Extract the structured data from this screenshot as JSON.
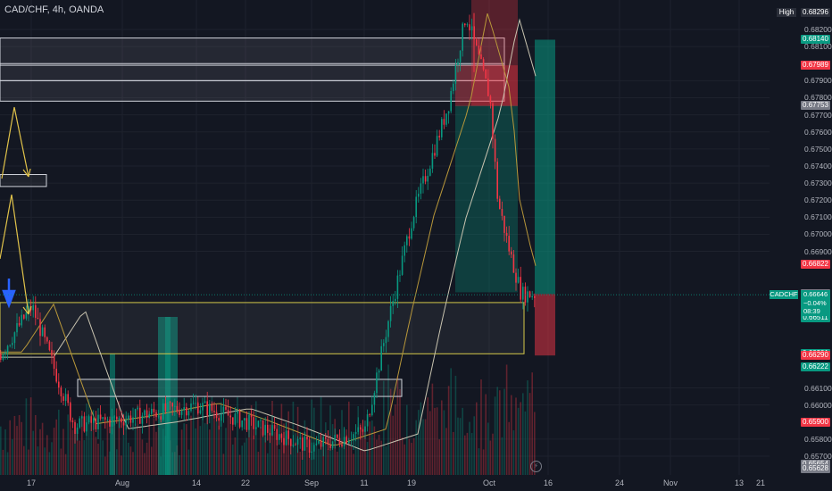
{
  "header": {
    "symbol_title": "CAD/CHF, 4h, OANDA"
  },
  "price_axis": {
    "ticks": [
      {
        "label": "0.68200",
        "value": 0.682
      },
      {
        "label": "0.68100",
        "value": 0.681
      },
      {
        "label": "0.67900",
        "value": 0.679
      },
      {
        "label": "0.67800",
        "value": 0.678
      },
      {
        "label": "0.67700",
        "value": 0.677
      },
      {
        "label": "0.67600",
        "value": 0.676
      },
      {
        "label": "0.67500",
        "value": 0.675
      },
      {
        "label": "0.67400",
        "value": 0.674
      },
      {
        "label": "0.67300",
        "value": 0.673
      },
      {
        "label": "0.67200",
        "value": 0.672
      },
      {
        "label": "0.67100",
        "value": 0.671
      },
      {
        "label": "0.67000",
        "value": 0.67
      },
      {
        "label": "0.66900",
        "value": 0.669
      },
      {
        "label": "0.66100",
        "value": 0.661
      },
      {
        "label": "0.66000",
        "value": 0.66
      },
      {
        "label": "0.65800",
        "value": 0.658
      },
      {
        "label": "0.65700",
        "value": 0.657
      }
    ],
    "high": {
      "label": "High",
      "value": "0.68296"
    },
    "badges": [
      {
        "value": "0.68140",
        "color": "#089981"
      },
      {
        "value": "0.67991",
        "color": "#787b86"
      },
      {
        "value": "0.67989",
        "color": "#f23645"
      },
      {
        "value": "0.67753",
        "color": "#787b86"
      },
      {
        "value": "0.66822",
        "color": "#f23645"
      },
      {
        "value": "0.66650",
        "color": "#787b86"
      },
      {
        "value": "0.66575",
        "color": "#089981"
      },
      {
        "value": "0.66574",
        "color": "#089981"
      },
      {
        "value": "0.66572",
        "color": "#787b86"
      },
      {
        "value": "0.66511",
        "color": "#089981"
      },
      {
        "value": "0.66301",
        "color": "#089981"
      },
      {
        "value": "0.66290",
        "color": "#f23645"
      },
      {
        "value": "0.66222",
        "color": "#089981"
      },
      {
        "value": "0.65900",
        "color": "#f23645"
      },
      {
        "value": "0.65654",
        "color": "#787b86"
      },
      {
        "value": "0.65628",
        "color": "#787b86"
      }
    ],
    "current": {
      "symbol": "CADCHF",
      "price": "0.66646",
      "change": "−0.04%",
      "countdown": "08:39"
    }
  },
  "time_axis": [
    "17",
    "Aug",
    "14",
    "22",
    "Sep",
    "11",
    "19",
    "Oct",
    "16",
    "24",
    "Nov",
    "13",
    "21"
  ],
  "colors": {
    "background": "#131722",
    "up": "#089981",
    "down": "#f23645",
    "zone_yellow": "#d4c84a",
    "zone_white": "#d1d4dc",
    "arrow_yellow": "#e0c24a",
    "arrow_blue": "#2962ff",
    "ma_light": "#c9c4b0",
    "ma_gold": "#b8973a"
  },
  "chart_data": {
    "type": "candlestick",
    "title": "CAD/CHF, 4h, OANDA",
    "ylim": [
      0.6555,
      0.6835
    ],
    "x_labels": [
      "17",
      "Aug",
      "14",
      "22",
      "Sep",
      "11",
      "19",
      "Oct",
      "16",
      "24",
      "Nov",
      "13",
      "21"
    ],
    "series": [
      {
        "name": "CAD/CHF",
        "points": [
          {
            "x": "Jul 17",
            "close": 0.6658
          },
          {
            "x": "Jul 24",
            "close": 0.6588
          },
          {
            "x": "Aug 01",
            "close": 0.6592
          },
          {
            "x": "Aug 14",
            "close": 0.66
          },
          {
            "x": "Aug 22",
            "close": 0.659
          },
          {
            "x": "Sep 01",
            "close": 0.6575
          },
          {
            "x": "Sep 11",
            "close": 0.6585
          },
          {
            "x": "Sep 15",
            "close": 0.665
          },
          {
            "x": "Sep 19",
            "close": 0.671
          },
          {
            "x": "Sep 25",
            "close": 0.6775
          },
          {
            "x": "Sep 28",
            "close": 0.6829
          },
          {
            "x": "Oct 01",
            "close": 0.678
          },
          {
            "x": "Oct 03",
            "close": 0.672
          },
          {
            "x": "Oct 06",
            "close": 0.669
          },
          {
            "x": "Oct 09",
            "close": 0.6665
          }
        ]
      }
    ],
    "last_price": 0.66646,
    "high": 0.68296,
    "zones": [
      {
        "from": 0.6815,
        "to": 0.6799
      },
      {
        "from": 0.68,
        "to": 0.679
      },
      {
        "from": 0.679,
        "to": 0.6778
      },
      {
        "from": 0.6735,
        "to": 0.6728
      },
      {
        "from": 0.666,
        "to": 0.663
      },
      {
        "from": 0.6615,
        "to": 0.6605
      }
    ],
    "positions": [
      {
        "type": "short",
        "entry": 0.67753,
        "stop": 0.68296
      },
      {
        "type": "long",
        "entry": 0.6665,
        "target": 0.6814,
        "stop": 0.6629
      }
    ]
  }
}
